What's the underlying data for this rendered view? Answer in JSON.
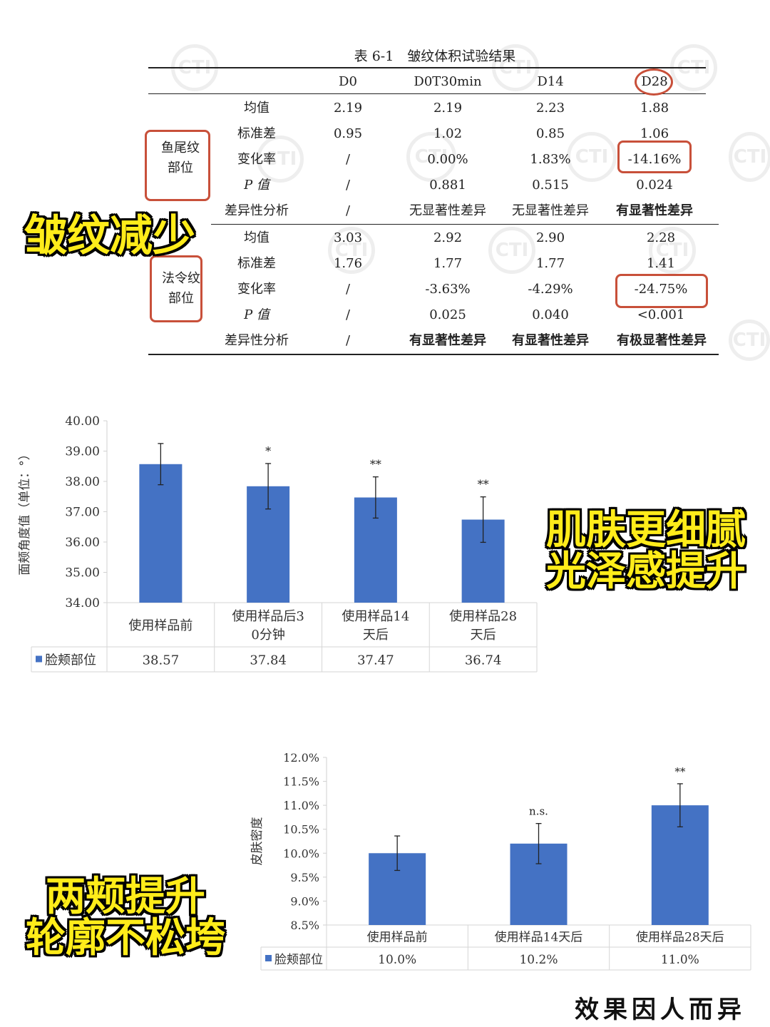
{
  "table": {
    "title": "表 6-1　皱纹体积试验结果",
    "columns": [
      "D0",
      "D0T30min",
      "D14",
      "D28"
    ],
    "groups": [
      {
        "label": "鱼尾纹\n部位",
        "rows": [
          {
            "label": "均值",
            "values": [
              "2.19",
              "2.19",
              "2.23",
              "1.88"
            ]
          },
          {
            "label": "标准差",
            "values": [
              "0.95",
              "1.02",
              "0.85",
              "1.06"
            ]
          },
          {
            "label": "变化率",
            "values": [
              "/",
              "0.00%",
              "1.83%",
              "-14.16%"
            ]
          },
          {
            "label": "P 值",
            "values": [
              "/",
              "0.881",
              "0.515",
              "0.024"
            ]
          },
          {
            "label": "差异性分析",
            "values": [
              "/",
              "无显著性差异",
              "无显著性差异",
              "有显著性差异"
            ]
          }
        ]
      },
      {
        "label": "法令纹\n部位",
        "rows": [
          {
            "label": "均值",
            "values": [
              "3.03",
              "2.92",
              "2.90",
              "2.28"
            ]
          },
          {
            "label": "标准差",
            "values": [
              "1.76",
              "1.77",
              "1.77",
              "1.41"
            ]
          },
          {
            "label": "变化率",
            "values": [
              "/",
              "-3.63%",
              "-4.29%",
              "-24.75%"
            ]
          },
          {
            "label": "P 值",
            "values": [
              "/",
              "0.025",
              "0.040",
              "<0.001"
            ]
          },
          {
            "label": "差异性分析",
            "values": [
              "/",
              "有显著性差异",
              "有显著性差异",
              "有极显著性差异"
            ]
          }
        ]
      }
    ]
  },
  "overlays": {
    "caption1": "皱纹减少",
    "caption2_line1": "肌肤更细腻",
    "caption2_line2": "光泽感提升",
    "caption3_line1": "两颊提升",
    "caption3_line2": "轮廓不松垮",
    "footer": "效果因人而异",
    "watermark_text": "CTI"
  },
  "chart_data": [
    {
      "type": "bar",
      "ylabel": "面颊角度值（单位：°）",
      "yticks": [
        "40.00",
        "39.00",
        "38.00",
        "37.00",
        "36.00",
        "35.00",
        "34.00"
      ],
      "ylim": [
        34,
        40
      ],
      "categories": [
        "使用样品前",
        "使用样品后30分钟",
        "使用样品14天后",
        "使用样品28天后"
      ],
      "series": [
        {
          "name": "脸颊部位",
          "values": [
            38.57,
            37.84,
            37.47,
            36.74
          ],
          "labels": [
            "38.57",
            "37.84",
            "37.47",
            "36.74"
          ],
          "errors": [
            0.68,
            0.75,
            0.68,
            0.75
          ]
        }
      ],
      "significance": [
        "",
        "*",
        "**",
        "**"
      ],
      "color": "#4472c4"
    },
    {
      "type": "bar",
      "ylabel": "皮肤密度",
      "yticks": [
        "12.0%",
        "11.5%",
        "11.0%",
        "10.5%",
        "10.0%",
        "9.5%",
        "9.0%",
        "8.5%"
      ],
      "ylim": [
        8.5,
        12.0
      ],
      "categories": [
        "使用样品前",
        "使用样品14天后",
        "使用样品28天后"
      ],
      "series": [
        {
          "name": "脸颊部位",
          "values": [
            10.0,
            10.2,
            11.0
          ],
          "labels": [
            "10.0%",
            "10.2%",
            "11.0%"
          ],
          "errors": [
            0.36,
            0.42,
            0.45
          ]
        }
      ],
      "significance": [
        "",
        "n.s.",
        "**"
      ],
      "color": "#4472c4"
    }
  ]
}
